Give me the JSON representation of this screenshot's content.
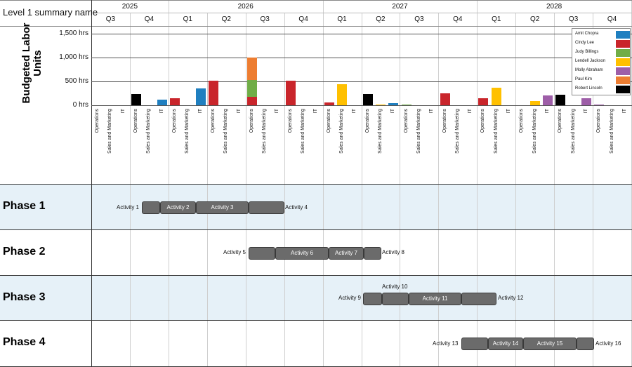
{
  "header": {
    "title": "Level 1 summary name",
    "years": [
      "2025",
      "2026",
      "2027",
      "2028"
    ],
    "quarters": [
      "Q3",
      "Q4",
      "Q1",
      "Q2",
      "Q3",
      "Q4",
      "Q1",
      "Q2",
      "Q3",
      "Q4",
      "Q1",
      "Q2",
      "Q3",
      "Q4"
    ]
  },
  "chart_data": {
    "type": "bar",
    "stacked": true,
    "ylabel": "Budgeted Labor Units",
    "ylim": [
      0,
      1500
    ],
    "yticks": [
      0,
      500,
      1000,
      1500
    ],
    "ytick_labels": [
      "0 hrs",
      "500 hrs",
      "1,000 hrs",
      "1,500 hrs"
    ],
    "grid": true,
    "legend_position": "top-right",
    "categories": [
      "Operations",
      "Sales and Marketing",
      "IT"
    ],
    "groups": [
      "2025 Q3",
      "2025 Q4",
      "2026 Q1",
      "2026 Q2",
      "2026 Q3",
      "2026 Q4",
      "2027 Q1",
      "2027 Q2",
      "2027 Q3",
      "2027 Q4",
      "2028 Q1",
      "2028 Q2",
      "2028 Q3",
      "2028 Q4"
    ],
    "series": [
      {
        "name": "Amit Chopra",
        "color": "#1f7fc0",
        "values": [
          [
            0,
            0,
            0
          ],
          [
            0,
            0,
            120
          ],
          [
            0,
            0,
            350
          ],
          [
            0,
            0,
            0
          ],
          [
            0,
            0,
            0
          ],
          [
            0,
            0,
            0
          ],
          [
            0,
            0,
            0
          ],
          [
            0,
            0,
            40
          ],
          [
            0,
            0,
            0
          ],
          [
            0,
            0,
            0
          ],
          [
            0,
            0,
            0
          ],
          [
            0,
            0,
            0
          ],
          [
            0,
            0,
            0
          ],
          [
            0,
            0,
            0
          ]
        ]
      },
      {
        "name": "Cindy Lee",
        "color": "#c9252b",
        "values": [
          [
            0,
            0,
            0
          ],
          [
            0,
            0,
            0
          ],
          [
            150,
            0,
            0
          ],
          [
            510,
            0,
            0
          ],
          [
            180,
            0,
            0
          ],
          [
            510,
            0,
            0
          ],
          [
            60,
            0,
            0
          ],
          [
            0,
            0,
            0
          ],
          [
            0,
            0,
            0
          ],
          [
            250,
            0,
            0
          ],
          [
            150,
            0,
            0
          ],
          [
            0,
            0,
            0
          ],
          [
            0,
            0,
            0
          ],
          [
            0,
            0,
            0
          ]
        ]
      },
      {
        "name": "Judy Billings",
        "color": "#70ad47",
        "values": [
          [
            0,
            0,
            0
          ],
          [
            0,
            0,
            0
          ],
          [
            0,
            0,
            0
          ],
          [
            0,
            0,
            0
          ],
          [
            350,
            0,
            0
          ],
          [
            0,
            0,
            0
          ],
          [
            0,
            0,
            0
          ],
          [
            0,
            0,
            0
          ],
          [
            15,
            0,
            0
          ],
          [
            0,
            0,
            0
          ],
          [
            0,
            0,
            0
          ],
          [
            0,
            0,
            0
          ],
          [
            0,
            0,
            0
          ],
          [
            0,
            0,
            0
          ]
        ]
      },
      {
        "name": "Lendell Jackson",
        "color": "#ffc000",
        "values": [
          [
            0,
            0,
            0
          ],
          [
            0,
            0,
            0
          ],
          [
            0,
            0,
            0
          ],
          [
            0,
            0,
            0
          ],
          [
            0,
            0,
            0
          ],
          [
            0,
            0,
            0
          ],
          [
            0,
            440,
            0
          ],
          [
            0,
            20,
            0
          ],
          [
            0,
            0,
            0
          ],
          [
            0,
            0,
            0
          ],
          [
            0,
            370,
            0
          ],
          [
            0,
            90,
            0
          ],
          [
            0,
            0,
            0
          ],
          [
            0,
            0,
            0
          ]
        ]
      },
      {
        "name": "Molly Abraham",
        "color": "#9e5ea8",
        "values": [
          [
            0,
            0,
            0
          ],
          [
            0,
            0,
            0
          ],
          [
            0,
            0,
            0
          ],
          [
            0,
            0,
            0
          ],
          [
            0,
            0,
            0
          ],
          [
            0,
            0,
            0
          ],
          [
            0,
            0,
            0
          ],
          [
            0,
            0,
            0
          ],
          [
            0,
            0,
            0
          ],
          [
            0,
            0,
            0
          ],
          [
            0,
            0,
            0
          ],
          [
            0,
            0,
            200
          ],
          [
            0,
            0,
            150
          ],
          [
            10,
            0,
            0
          ]
        ]
      },
      {
        "name": "Paul Kim",
        "color": "#ed7d31",
        "values": [
          [
            0,
            0,
            0
          ],
          [
            0,
            0,
            0
          ],
          [
            0,
            0,
            0
          ],
          [
            0,
            0,
            0
          ],
          [
            470,
            0,
            0
          ],
          [
            0,
            0,
            0
          ],
          [
            0,
            0,
            0
          ],
          [
            0,
            0,
            0
          ],
          [
            0,
            0,
            0
          ],
          [
            0,
            0,
            0
          ],
          [
            0,
            0,
            0
          ],
          [
            0,
            0,
            0
          ],
          [
            0,
            0,
            0
          ],
          [
            0,
            0,
            0
          ]
        ]
      },
      {
        "name": "Robert Lincoln",
        "color": "#000000",
        "values": [
          [
            0,
            0,
            0
          ],
          [
            230,
            0,
            0
          ],
          [
            0,
            0,
            0
          ],
          [
            0,
            0,
            0
          ],
          [
            0,
            0,
            0
          ],
          [
            0,
            0,
            0
          ],
          [
            0,
            0,
            0
          ],
          [
            230,
            0,
            0
          ],
          [
            0,
            0,
            0
          ],
          [
            0,
            0,
            0
          ],
          [
            0,
            0,
            0
          ],
          [
            0,
            0,
            0
          ],
          [
            220,
            0,
            0
          ],
          [
            0,
            0,
            0
          ]
        ]
      }
    ]
  },
  "phases": [
    {
      "name": "Phase 1",
      "shaded": true,
      "labels": [
        {
          "text": "Activity 1"
        },
        {
          "text": "Activity 4"
        }
      ],
      "bars": [
        {
          "label": ""
        },
        {
          "label": "Activity 2"
        },
        {
          "label": "Activity 3"
        },
        {
          "label": ""
        }
      ]
    },
    {
      "name": "Phase 2",
      "shaded": false,
      "labels": [
        {
          "text": "Activity 5"
        },
        {
          "text": "Activity 8"
        }
      ],
      "bars": [
        {
          "label": ""
        },
        {
          "label": "Activity 6"
        },
        {
          "label": "Activity 7"
        },
        {
          "label": ""
        }
      ]
    },
    {
      "name": "Phase 3",
      "shaded": true,
      "labels": [
        {
          "text": "Activity 9"
        },
        {
          "text": "Activity 10"
        },
        {
          "text": "Activity 12"
        }
      ],
      "bars": [
        {
          "label": ""
        },
        {
          "label": ""
        },
        {
          "label": "Activity 11"
        },
        {
          "label": ""
        }
      ]
    },
    {
      "name": "Phase 4",
      "shaded": false,
      "labels": [
        {
          "text": "Activity 13"
        },
        {
          "text": "Activity 16"
        }
      ],
      "bars": [
        {
          "label": ""
        },
        {
          "label": "Activity 14"
        },
        {
          "label": "Activity 15"
        },
        {
          "label": ""
        }
      ]
    }
  ],
  "colors": {
    "phase_shade": "#e6f1f8",
    "bar_fill": "#6b6b6b",
    "grid": "#cfcfcf"
  }
}
